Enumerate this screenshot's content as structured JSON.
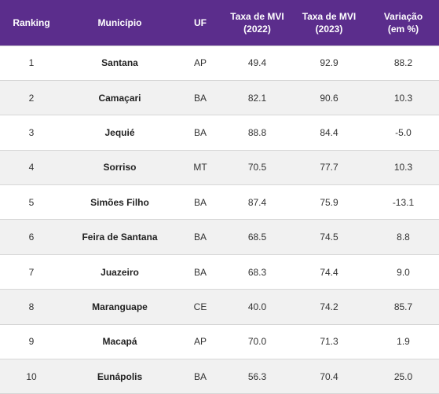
{
  "headers": {
    "ranking": "Ranking",
    "municipio": "Município",
    "uf": "UF",
    "taxa2022_l1": "Taxa de MVI",
    "taxa2022_l2": "(2022)",
    "taxa2023_l1": "Taxa de MVI",
    "taxa2023_l2": "(2023)",
    "variacao_l1": "Variação",
    "variacao_l2": "(em %)"
  },
  "rows": [
    {
      "ranking": "1",
      "municipio": "Santana",
      "uf": "AP",
      "taxa2022": "49.4",
      "taxa2023": "92.9",
      "variacao": "88.2"
    },
    {
      "ranking": "2",
      "municipio": "Camaçari",
      "uf": "BA",
      "taxa2022": "82.1",
      "taxa2023": "90.6",
      "variacao": "10.3"
    },
    {
      "ranking": "3",
      "municipio": "Jequié",
      "uf": "BA",
      "taxa2022": "88.8",
      "taxa2023": "84.4",
      "variacao": "-5.0"
    },
    {
      "ranking": "4",
      "municipio": "Sorriso",
      "uf": "MT",
      "taxa2022": "70.5",
      "taxa2023": "77.7",
      "variacao": "10.3"
    },
    {
      "ranking": "5",
      "municipio": "Simões Filho",
      "uf": "BA",
      "taxa2022": "87.4",
      "taxa2023": "75.9",
      "variacao": "-13.1"
    },
    {
      "ranking": "6",
      "municipio": "Feira de Santana",
      "uf": "BA",
      "taxa2022": "68.5",
      "taxa2023": "74.5",
      "variacao": "8.8"
    },
    {
      "ranking": "7",
      "municipio": "Juazeiro",
      "uf": "BA",
      "taxa2022": "68.3",
      "taxa2023": "74.4",
      "variacao": "9.0"
    },
    {
      "ranking": "8",
      "municipio": "Maranguape",
      "uf": "CE",
      "taxa2022": "40.0",
      "taxa2023": "74.2",
      "variacao": "85.7"
    },
    {
      "ranking": "9",
      "municipio": "Macapá",
      "uf": "AP",
      "taxa2022": "70.0",
      "taxa2023": "71.3",
      "variacao": "1.9"
    },
    {
      "ranking": "10",
      "municipio": "Eunápolis",
      "uf": "BA",
      "taxa2022": "56.3",
      "taxa2023": "70.4",
      "variacao": "25.0"
    }
  ],
  "colors": {
    "header_bg": "#5b2d8c",
    "header_text": "#ffffff",
    "row_alt_bg": "#f1f1f1",
    "border": "#d6d6d6"
  }
}
